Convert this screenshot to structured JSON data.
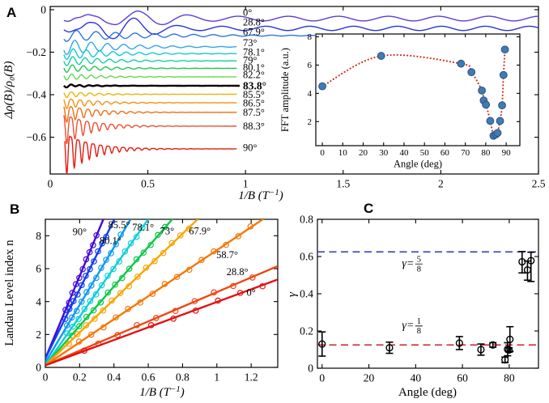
{
  "panels": [
    {
      "letter": "A"
    },
    {
      "letter": "B"
    },
    {
      "letter": "C"
    }
  ],
  "chart_data": [
    {
      "id": "panel-a",
      "type": "line",
      "xlabel": "1/B (T⁻¹)",
      "ylabel": "Δρ(B)/ρ₀(B)",
      "xlim": [
        0,
        2.5
      ],
      "ylim": [
        -0.773,
        0.015
      ],
      "xticks": [
        0,
        0.5,
        1,
        1.5,
        2,
        2.5
      ],
      "xtick_labels": [
        "0",
        "0.5",
        "1",
        "1.5",
        "2",
        "2.5"
      ],
      "yticks": [
        0,
        -0.2,
        -0.4,
        -0.6
      ],
      "ytick_labels": [
        "0",
        "−0.2",
        "−0.4",
        "−0.6"
      ],
      "series": [
        {
          "label": "0°",
          "color": "#5a3fd6",
          "base": -0.042,
          "env_const": 0.011,
          "bump_a": 0.024,
          "bump_x": 0.45,
          "bump_w": 0.22,
          "freq": 3.9,
          "peak_x": 0.45,
          "x_start": 0.07,
          "x_end": 2.5,
          "label_dy": -8
        },
        {
          "label": "28.8°",
          "color": "#2a34dc",
          "base": -0.088,
          "env_const": 0.01,
          "bump_a": 0.042,
          "bump_x": 0.37,
          "bump_w": 0.18,
          "freq": 4.45,
          "peak_x": 0.43,
          "x_start": 0.07,
          "x_end": 2.5,
          "label_dy": -8
        },
        {
          "label": "67.9°",
          "color": "#2f74e8",
          "base": -0.122,
          "amp": 0.028,
          "freq": 10,
          "tau": 0.42,
          "h2": 0,
          "x_start": 0.07,
          "x_end": 1.45,
          "label_dy": -5
        },
        {
          "label": "73°",
          "color": "#2fa8e8",
          "base": -0.175,
          "amp": 0.038,
          "freq": 12,
          "tau": 0.26,
          "h2": 0,
          "x_start": 0.07,
          "x_end": 0.955,
          "label_dy": -5
        },
        {
          "label": "78.1°",
          "color": "#17c8d8",
          "base": -0.207,
          "amp": 0.028,
          "freq": 14.8,
          "tau": 0.24,
          "h2": 0,
          "x_start": 0.07,
          "x_end": 0.955,
          "label_dy": -2
        },
        {
          "label": "79°",
          "color": "#12cfa4",
          "base": -0.241,
          "amp": 0.024,
          "freq": 16,
          "tau": 0.22,
          "h2": 0,
          "x_start": 0.07,
          "x_end": 0.955,
          "label_dy": -1
        },
        {
          "label": "80.1°",
          "color": "#25c455",
          "base": -0.276,
          "amp": 0.02,
          "freq": 17.5,
          "tau": 0.2,
          "h2": 0,
          "x_start": 0.07,
          "x_end": 0.955,
          "label_dy": -1
        },
        {
          "label": "82.2°",
          "color": "#66d84e",
          "base": -0.316,
          "amp": 0.016,
          "freq": 20,
          "tau": 0.18,
          "h2": 0,
          "x_start": 0.07,
          "x_end": 0.955,
          "label_dy": -3
        },
        {
          "label": "83.8°",
          "color": "#000000",
          "base": -0.358,
          "amp": 0.007,
          "freq": 22,
          "tau": 0.15,
          "h2": 0,
          "x_start": 0.07,
          "x_end": 0.97,
          "label_dy": 0,
          "bold": true,
          "noisy": true
        },
        {
          "label": "85.5°",
          "color": "#edb409",
          "base": -0.398,
          "amp": 0.015,
          "freq": 21,
          "tau": 0.16,
          "h2": 0.1,
          "x_start": 0.07,
          "x_end": 0.955,
          "label_dy": 0
        },
        {
          "label": "86.5°",
          "color": "#f2930f",
          "base": -0.438,
          "amp": 0.026,
          "freq": 22,
          "tau": 0.16,
          "h2": 0.15,
          "x_start": 0.07,
          "x_end": 0.955,
          "label_dy": 0
        },
        {
          "label": "87.5°",
          "color": "#ef6f14",
          "base": -0.483,
          "amp": 0.042,
          "freq": 23,
          "tau": 0.15,
          "h2": 0.2,
          "x_start": 0.07,
          "x_end": 0.955,
          "label_dy": 0
        },
        {
          "label": "88.3°",
          "color": "#ee5030",
          "base": -0.548,
          "amp": 0.075,
          "freq": 24,
          "tau": 0.13,
          "h2": 0.25,
          "x_start": 0.07,
          "x_end": 0.955,
          "label_dy": 0
        },
        {
          "label": "90°",
          "color": "#e41c11",
          "base": -0.655,
          "amp": 0.1,
          "freq": 26,
          "tau": 0.13,
          "h2": 0.3,
          "x_start": 0.075,
          "x_end": 0.955,
          "label_dy": -2
        }
      ]
    },
    {
      "id": "panel-a-inset",
      "type": "scatter",
      "xlabel": "Angle (deg)",
      "ylabel": "FFT amplitude (a.u.)",
      "xlim": [
        -3.2,
        96.7
      ],
      "ylim": [
        0.3,
        8.2
      ],
      "xticks": [
        0,
        10,
        20,
        30,
        40,
        50,
        60,
        70,
        80,
        90
      ],
      "xtick_labels": [
        "0",
        "10",
        "20",
        "30",
        "40",
        "50",
        "60",
        "70",
        "80",
        "90"
      ],
      "yticks": [
        2,
        4,
        6,
        8
      ],
      "ytick_labels": [
        "2",
        "4",
        "6",
        "8"
      ],
      "points": [
        [
          0,
          4.5
        ],
        [
          28.8,
          6.65
        ],
        [
          67.9,
          6.1
        ],
        [
          73,
          5.5
        ],
        [
          78.1,
          4.2
        ],
        [
          79,
          3.5
        ],
        [
          80.1,
          3.2
        ],
        [
          82.2,
          2.05
        ],
        [
          83.8,
          1.0
        ],
        [
          85,
          1.1
        ],
        [
          85.8,
          1.2
        ],
        [
          87,
          2.05
        ],
        [
          88,
          3.15
        ],
        [
          88.7,
          5.3
        ],
        [
          89.4,
          7.1
        ]
      ],
      "marker_color": "#3f7cb6",
      "marker_edge": "#27537e",
      "line_color": "#d8281e",
      "line_style": "dotted"
    },
    {
      "id": "panel-b",
      "type": "line",
      "xlabel": "1/B (T⁻¹)",
      "ylabel": "Landau Level index n",
      "xlim": [
        0,
        1.355
      ],
      "ylim": [
        0,
        9
      ],
      "xticks": [
        0,
        0.2,
        0.4,
        0.6,
        0.8,
        1,
        1.2
      ],
      "xtick_labels": [
        "0",
        "0.2",
        "0.4",
        "0.6",
        "0.8",
        "1",
        "1.2"
      ],
      "yticks": [
        0,
        2,
        4,
        6,
        8
      ],
      "ytick_labels": [
        "0",
        "2",
        "4",
        "6",
        "8"
      ],
      "series": [
        {
          "label": "90°",
          "color": "#4408d8",
          "slope": 25,
          "intercept": 0.55,
          "n_min": 3.5,
          "n_max": 8,
          "label_pos": [
            0.2,
            8.05
          ]
        },
        {
          "label": "85.5°",
          "color": "#0d3cf0",
          "slope": 21,
          "intercept": 0.55,
          "n_min": 3,
          "n_max": 8,
          "label_pos": [
            0.43,
            8.45
          ]
        },
        {
          "label": "80.1°",
          "color": "#0d9bf0",
          "slope": 17.5,
          "intercept": 0.3,
          "n_min": 2.5,
          "n_max": 8,
          "label_pos": [
            0.38,
            7.5
          ]
        },
        {
          "label": "78.1°",
          "color": "#0ccfd8",
          "slope": 14.8,
          "intercept": 0.125,
          "n_min": 2,
          "n_max": 8.5,
          "label_pos": [
            0.57,
            8.3
          ]
        },
        {
          "label": "73°",
          "color": "#0cc84a",
          "slope": 12,
          "intercept": 0.125,
          "n_min": 2,
          "n_max": 8.5,
          "label_pos": [
            0.71,
            8.1
          ]
        },
        {
          "label": "67.9°",
          "color": "#f8a503",
          "slope": 10,
          "intercept": 0.125,
          "n_min": 1.5,
          "n_max": 8.5,
          "label_pos": [
            0.9,
            8.1
          ]
        },
        {
          "label": "58.7°",
          "color": "#f47806",
          "slope": 7.0,
          "intercept": 0.125,
          "n_min": 1.5,
          "n_max": 8.5,
          "label_pos": [
            1.06,
            6.65
          ]
        },
        {
          "label": "28.8°",
          "color": "#ef4612",
          "slope": 4.45,
          "intercept": 0.125,
          "n_min": 1.5,
          "n_max": 5.5,
          "label_pos": [
            1.12,
            5.6
          ]
        },
        {
          "label": "0°",
          "color": "#e31111",
          "slope": 3.85,
          "intercept": 0.125,
          "n_list": [
            1,
            2.5,
            3,
            3.5,
            4,
            4.5,
            5
          ],
          "label_pos": [
            1.2,
            4.35
          ]
        }
      ]
    },
    {
      "id": "panel-c",
      "type": "scatter",
      "xlabel": "Angle (deg)",
      "ylabel": "γ",
      "xlim": [
        -2,
        92.5
      ],
      "ylim": [
        0,
        0.8
      ],
      "xticks": [
        0,
        20,
        40,
        60,
        80
      ],
      "xtick_labels": [
        "0",
        "20",
        "40",
        "60",
        "80"
      ],
      "yticks": [
        0,
        0.2,
        0.4,
        0.6,
        0.8
      ],
      "ytick_labels": [
        "0",
        "0.2",
        "0.4",
        "0.6",
        "0.8"
      ],
      "points": [
        {
          "x": 0,
          "y": 0.13,
          "lo": 0.065,
          "hi": 0.065
        },
        {
          "x": 28.8,
          "y": 0.11,
          "lo": 0.03,
          "hi": 0.03
        },
        {
          "x": 58.7,
          "y": 0.135,
          "lo": 0.035,
          "hi": 0.035
        },
        {
          "x": 67.9,
          "y": 0.1,
          "lo": 0.03,
          "hi": 0.03
        },
        {
          "x": 73,
          "y": 0.125,
          "lo": 0.012,
          "hi": 0.012
        },
        {
          "x": 78.2,
          "y": 0.045,
          "lo": 0.015,
          "hi": 0.015
        },
        {
          "x": 79.3,
          "y": 0.102,
          "lo": 0.035,
          "hi": 0.035
        },
        {
          "x": 79.9,
          "y": 0.098,
          "lo": 0.012,
          "hi": 0.012
        },
        {
          "x": 80.3,
          "y": 0.155,
          "lo": 0.065,
          "hi": 0.068
        },
        {
          "x": 85.5,
          "y": 0.572,
          "lo": 0.06,
          "hi": 0.055
        },
        {
          "x": 87.8,
          "y": 0.528,
          "lo": 0.055,
          "hi": 0.048
        },
        {
          "x": 89.3,
          "y": 0.578,
          "lo": 0.112,
          "hi": 0.045
        }
      ],
      "hlines": [
        {
          "y": 0.625,
          "color": "#2b3aa0",
          "label_prefix": "γ=",
          "label_num": "5",
          "label_den": "8",
          "label_pos": [
            40,
            0.565
          ],
          "label_color": "#333333"
        },
        {
          "y": 0.125,
          "color": "#cc2020",
          "label_prefix": "γ=",
          "label_num": "1",
          "label_den": "8",
          "label_pos": [
            40,
            0.232
          ],
          "label_color": "#111111"
        }
      ]
    }
  ]
}
